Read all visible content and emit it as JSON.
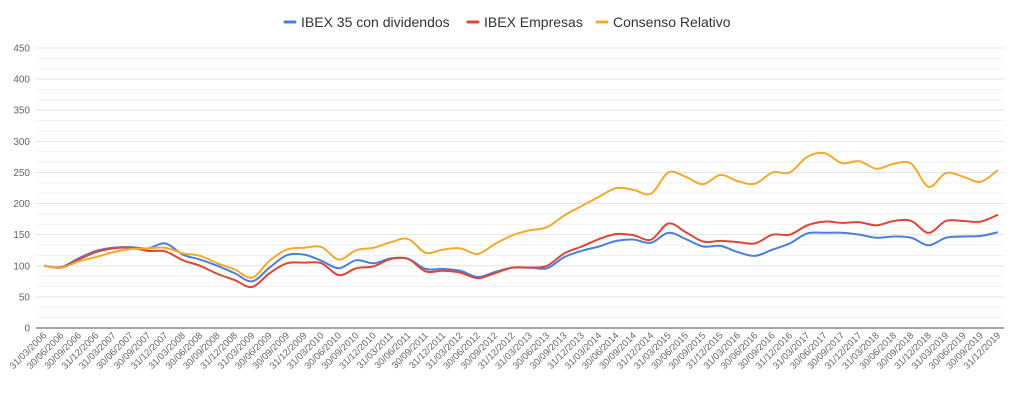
{
  "chart_data": {
    "type": "line",
    "title": "",
    "xlabel": "",
    "ylabel": "",
    "ylim": [
      0,
      450
    ],
    "yticks": [
      0,
      50,
      100,
      150,
      200,
      250,
      300,
      350,
      400,
      450
    ],
    "grid": true,
    "legend_position": "top",
    "x": [
      "31/03/2006",
      "30/06/2006",
      "30/09/2006",
      "31/12/2006",
      "31/03/2007",
      "30/06/2007",
      "30/09/2007",
      "31/12/2007",
      "31/03/2008",
      "30/06/2008",
      "30/09/2008",
      "31/12/2008",
      "31/03/2009",
      "30/06/2009",
      "30/09/2009",
      "31/12/2009",
      "31/03/2010",
      "30/06/2010",
      "30/09/2010",
      "31/12/2010",
      "31/03/2011",
      "30/06/2011",
      "30/09/2011",
      "31/12/2011",
      "31/03/2012",
      "30/06/2012",
      "30/09/2012",
      "31/12/2012",
      "31/03/2013",
      "30/06/2013",
      "30/09/2013",
      "31/12/2013",
      "31/03/2014",
      "30/06/2014",
      "30/09/2014",
      "31/12/2014",
      "31/03/2015",
      "30/06/2015",
      "30/09/2015",
      "31/12/2015",
      "31/03/2016",
      "30/06/2016",
      "30/09/2016",
      "31/12/2016",
      "31/03/2017",
      "30/06/2017",
      "30/09/2017",
      "31/12/2017",
      "31/03/2018",
      "30/06/2018",
      "30/09/2018",
      "31/12/2018",
      "31/03/2019",
      "30/06/2019",
      "30/09/2019",
      "31/12/2019"
    ],
    "series": [
      {
        "name": "IBEX 35 con dividendos",
        "color": "#4a7fdf",
        "values": [
          100,
          98,
          112,
          124,
          129,
          130,
          128,
          136,
          118,
          110,
          100,
          88,
          75,
          97,
          117,
          118,
          108,
          96,
          109,
          104,
          112,
          111,
          95,
          95,
          92,
          82,
          90,
          97,
          97,
          96,
          114,
          124,
          131,
          140,
          142,
          137,
          153,
          143,
          131,
          132,
          122,
          116,
          126,
          136,
          152,
          153,
          153,
          150,
          145,
          147,
          145,
          133,
          145,
          147,
          148,
          154
        ]
      },
      {
        "name": "IBEX Empresas",
        "color": "#dc4636",
        "values": [
          100,
          97,
          110,
          122,
          128,
          129,
          124,
          123,
          109,
          100,
          87,
          77,
          66,
          88,
          104,
          105,
          104,
          85,
          96,
          99,
          111,
          111,
          91,
          92,
          89,
          80,
          88,
          97,
          97,
          100,
          120,
          131,
          143,
          151,
          149,
          142,
          168,
          154,
          139,
          140,
          138,
          136,
          150,
          150,
          165,
          171,
          169,
          170,
          165,
          172,
          172,
          153,
          172,
          172,
          171,
          182
        ]
      },
      {
        "name": "Consenso Relativo",
        "color": "#f6a82a",
        "values": [
          100,
          97,
          107,
          114,
          122,
          127,
          128,
          129,
          120,
          116,
          104,
          94,
          81,
          108,
          126,
          129,
          130,
          110,
          125,
          129,
          138,
          143,
          121,
          126,
          128,
          119,
          135,
          149,
          157,
          162,
          181,
          196,
          211,
          225,
          222,
          216,
          250,
          243,
          231,
          246,
          236,
          232,
          250,
          250,
          275,
          281,
          265,
          268,
          256,
          264,
          264,
          227,
          249,
          243,
          235,
          254
        ]
      }
    ]
  }
}
